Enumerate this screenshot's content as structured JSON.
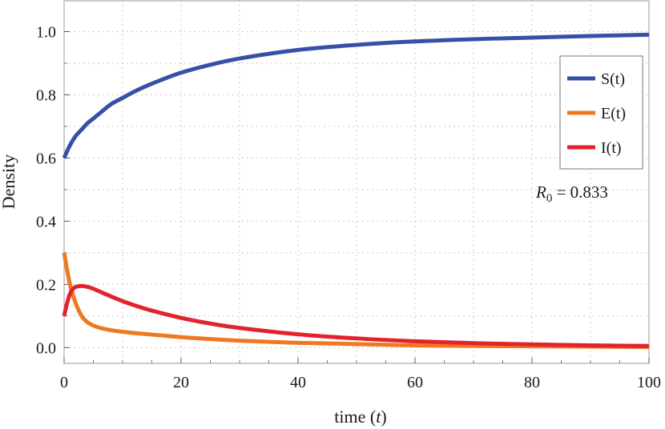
{
  "chart_data": {
    "type": "line",
    "xlabel": "time (t)",
    "xlabel_parts": {
      "pre": "time (",
      "var": "t",
      "post": ")"
    },
    "ylabel": "Density",
    "xlim": [
      0,
      100
    ],
    "ylim": [
      -0.05,
      1.1
    ],
    "x_ticks": [
      0,
      20,
      40,
      60,
      80,
      100
    ],
    "x_tick_labels": [
      "0",
      "20",
      "40",
      "60",
      "80",
      "100"
    ],
    "y_ticks": [
      0.0,
      0.2,
      0.4,
      0.6,
      0.8,
      1.0
    ],
    "y_tick_labels": [
      "0.0",
      "0.2",
      "0.4",
      "0.6",
      "0.8",
      "1.0"
    ],
    "grid": true,
    "legend_position": "top-right",
    "annotation": {
      "symbol": "R",
      "subscript": "0",
      "text": " = 0.833"
    },
    "series": [
      {
        "name": "S(t)",
        "color": "#3650a8",
        "x": [
          0,
          1,
          2,
          3,
          4,
          5,
          6,
          8,
          10,
          12,
          15,
          20,
          25,
          30,
          40,
          50,
          60,
          70,
          80,
          90,
          100
        ],
        "y": [
          0.6,
          0.64,
          0.67,
          0.69,
          0.71,
          0.725,
          0.74,
          0.77,
          0.79,
          0.81,
          0.835,
          0.87,
          0.895,
          0.915,
          0.942,
          0.958,
          0.969,
          0.976,
          0.981,
          0.986,
          0.99
        ]
      },
      {
        "name": "E(t)",
        "color": "#f07820",
        "x": [
          0,
          1,
          2,
          3,
          4,
          5,
          6,
          8,
          10,
          12,
          15,
          20,
          25,
          30,
          40,
          50,
          60,
          70,
          80,
          90,
          100
        ],
        "y": [
          0.3,
          0.2,
          0.14,
          0.1,
          0.08,
          0.07,
          0.063,
          0.055,
          0.05,
          0.046,
          0.041,
          0.033,
          0.027,
          0.022,
          0.015,
          0.011,
          0.007,
          0.005,
          0.004,
          0.003,
          0.002
        ]
      },
      {
        "name": "I(t)",
        "color": "#e2232c",
        "x": [
          0,
          0.5,
          1,
          1.5,
          2,
          3,
          4,
          5,
          6,
          8,
          10,
          12,
          15,
          20,
          25,
          30,
          40,
          50,
          60,
          70,
          80,
          90,
          100
        ],
        "y": [
          0.1,
          0.14,
          0.17,
          0.185,
          0.192,
          0.195,
          0.192,
          0.186,
          0.178,
          0.162,
          0.147,
          0.134,
          0.117,
          0.094,
          0.076,
          0.062,
          0.042,
          0.029,
          0.02,
          0.014,
          0.01,
          0.007,
          0.005
        ]
      }
    ]
  }
}
